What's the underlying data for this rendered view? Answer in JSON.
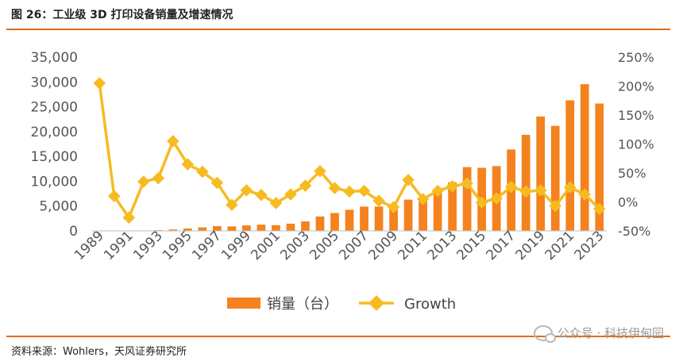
{
  "header": {
    "title": "图 26：工业级 3D 打印设备销量及增速情况"
  },
  "footer": {
    "source": "资料来源：Wohlers，天风证券研究所",
    "watermark": "公众号 · 科技伊甸园"
  },
  "colors": {
    "bars": "#f4821f",
    "line": "#f7bb22",
    "rule": "#e46c0a"
  },
  "chart_data": {
    "type": "bar+line",
    "categories": [
      "1989",
      "1990",
      "1991",
      "1992",
      "1993",
      "1994",
      "1995",
      "1996",
      "1997",
      "1998",
      "1999",
      "2000",
      "2001",
      "2002",
      "2003",
      "2004",
      "2005",
      "2006",
      "2007",
      "2008",
      "2009",
      "2010",
      "2011",
      "2012",
      "2013",
      "2014",
      "2015",
      "2016",
      "2017",
      "2018",
      "2019",
      "2020",
      "2021",
      "2022",
      "2023"
    ],
    "x_tick_labels": [
      "1989",
      "1991",
      "1993",
      "1995",
      "1997",
      "1999",
      "2001",
      "2003",
      "2005",
      "2007",
      "2009",
      "2011",
      "2013",
      "2015",
      "2017",
      "2019",
      "2021",
      "2023"
    ],
    "series": [
      {
        "name": "销量（台）",
        "type": "bar",
        "axis": "left",
        "values": [
          30,
          70,
          50,
          90,
          150,
          280,
          480,
          700,
          950,
          900,
          1100,
          1250,
          1150,
          1450,
          1900,
          2900,
          3600,
          4250,
          4900,
          4900,
          4550,
          6300,
          6550,
          7750,
          9800,
          12850,
          12700,
          13050,
          16400,
          19350,
          23050,
          21150,
          26300,
          29550,
          25650
        ]
      },
      {
        "name": "Growth",
        "type": "line",
        "axis": "right",
        "values": [
          2.05,
          0.1,
          -0.27,
          0.35,
          0.41,
          1.05,
          0.65,
          0.52,
          0.33,
          -0.05,
          0.2,
          0.12,
          -0.02,
          0.13,
          0.28,
          0.53,
          0.24,
          0.18,
          0.19,
          0.02,
          -0.09,
          0.38,
          0.05,
          0.19,
          0.27,
          0.32,
          -0.01,
          0.06,
          0.26,
          0.18,
          0.2,
          -0.07,
          0.25,
          0.13,
          -0.12
        ]
      }
    ],
    "y_left": {
      "min": 0,
      "max": 35000,
      "ticks": [
        "0",
        "5,000",
        "10,000",
        "15,000",
        "20,000",
        "25,000",
        "30,000",
        "35,000"
      ]
    },
    "y_right": {
      "min": -0.5,
      "max": 2.5,
      "ticks": [
        "-50%",
        "0%",
        "50%",
        "100%",
        "150%",
        "200%",
        "250%"
      ]
    },
    "legend": {
      "position": "bottom"
    },
    "grid": false
  }
}
